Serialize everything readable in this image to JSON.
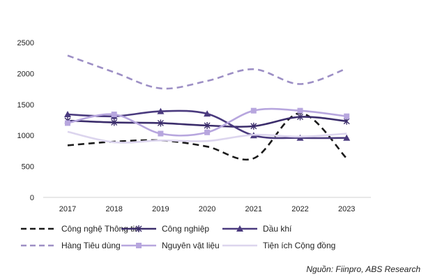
{
  "source": "Nguồn: Fiinpro, ABS Research",
  "chart_data": {
    "type": "line",
    "categories": [
      "2017",
      "2018",
      "2019",
      "2020",
      "2021",
      "2022",
      "2023"
    ],
    "ylim": [
      0,
      2500
    ],
    "yticks": [
      "0",
      "500",
      "1000",
      "1500",
      "2000",
      "2500"
    ],
    "grid": false,
    "legend_position": "bottom",
    "smooth": true,
    "series": [
      {
        "name": "Công nghệ Thông tin",
        "values": [
          840,
          900,
          920,
          820,
          630,
          1360,
          630
        ],
        "color": "#1a1a1a",
        "style": "dashed",
        "marker": "none"
      },
      {
        "name": "Công nghiệp",
        "values": [
          1240,
          1210,
          1200,
          1160,
          1150,
          1300,
          1230
        ],
        "color": "#3b2d6b",
        "style": "solid",
        "marker": "star"
      },
      {
        "name": "Dầu khí",
        "values": [
          1340,
          1310,
          1390,
          1350,
          1000,
          960,
          960
        ],
        "color": "#4a3a7e",
        "style": "solid",
        "marker": "triangle"
      },
      {
        "name": "Hàng Tiêu dùng",
        "values": [
          2290,
          2020,
          1760,
          1880,
          2070,
          1830,
          2080
        ],
        "color": "#9d8fc5",
        "style": "dashed",
        "marker": "none"
      },
      {
        "name": "Nguyên vật liệu",
        "values": [
          1200,
          1340,
          1030,
          1050,
          1400,
          1400,
          1310
        ],
        "color": "#b7a6de",
        "style": "solid",
        "marker": "square"
      },
      {
        "name": "Tiện ích Cộng đồng",
        "values": [
          1060,
          890,
          920,
          910,
          1010,
          980,
          1030
        ],
        "color": "#dcd5ee",
        "style": "solid",
        "marker": "none"
      }
    ]
  }
}
